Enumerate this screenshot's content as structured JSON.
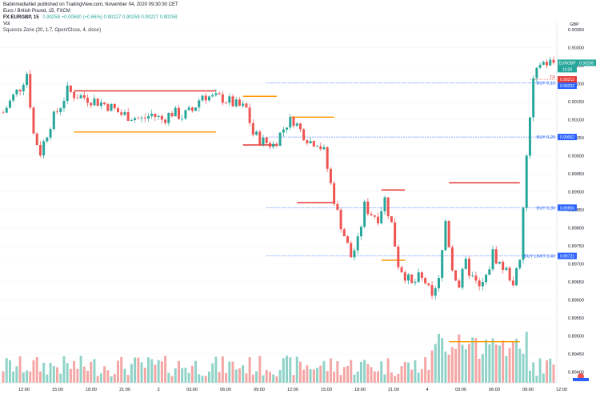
{
  "header": {
    "published": "BabinmediaNet published on TradingView.com, November 04, 2020 09:30:30 CET",
    "title": "Euro / British Pound, 15, FXCM",
    "symbol": "FX:EURGBP, 15",
    "ohlc": "0.90258  +0.00590 (+0.66%)  0.90227  0.90259  0.90227  0.90258",
    "vol": "Vol",
    "indicator": "Squeeze Zone (20, 1.7, Open/Close, 4, close)"
  },
  "price_axis": {
    "currency": "GBP",
    "ticks": [
      "0.90350",
      "0.90300",
      "0.90250",
      "0.90200",
      "0.90150",
      "0.90100",
      "0.90050",
      "0.90000",
      "0.89950",
      "0.89900",
      "0.89850",
      "0.89800",
      "0.89750",
      "0.89700",
      "0.89650",
      "0.89600",
      "0.89550",
      "0.89500",
      "0.89450",
      "0.89400"
    ]
  },
  "time_axis": {
    "ticks": [
      "12:00",
      "15:00",
      "18:00",
      "21:00",
      "3",
      "03:00",
      "06:00",
      "09:00",
      "12:00",
      "15:00",
      "18:00",
      "21:00",
      "4",
      "03:00",
      "06:00",
      "09:00",
      "12:00"
    ]
  },
  "price_tags": [
    {
      "text": "EURGBP 0.90258",
      "sym": "EURGBP",
      "value": 0.90258,
      "color": "#26a69a"
    },
    {
      "text": "14:30",
      "value": 0.90245,
      "color": "#26a69a"
    },
    {
      "text": "0.90212",
      "value": 0.90212,
      "color": "#e53935"
    },
    {
      "text": "0.90202",
      "value": 0.90202,
      "color": "#2962ff"
    },
    {
      "text": "0.90052",
      "value": 0.90052,
      "color": "#2962ff"
    },
    {
      "text": "0.89856",
      "value": 0.89856,
      "color": "#2962ff"
    },
    {
      "text": "0.89722",
      "value": 0.89722,
      "color": "#2962ff"
    }
  ],
  "annotations": [
    {
      "text": "TP",
      "value": 0.90218,
      "color": "#e53935"
    },
    {
      "text": "BUY 0,10",
      "value": 0.90202,
      "color": "#2962ff"
    },
    {
      "text": "BUY 0,20",
      "value": 0.90052,
      "color": "#2962ff"
    },
    {
      "text": "BUY 0,30",
      "value": 0.89856,
      "color": "#2962ff"
    },
    {
      "text": "BUY LIMIT 0,40",
      "value": 0.89722,
      "color": "#2962ff"
    }
  ],
  "chart_data": {
    "type": "candlestick",
    "title": "Euro / British Pound, 15, FXCM",
    "y_range": [
      0.8937,
      0.9037
    ],
    "x_range": [
      0,
      163
    ],
    "colors": {
      "up": "#26a69a",
      "down": "#ef5350",
      "vol_up": "#8fd3c8",
      "vol_down": "#f4a6a4",
      "resistance": "#e53935",
      "support": "#ff9800",
      "order": "#2962ff"
    },
    "series": [
      {
        "name": "support/resistance",
        "kind": "levels"
      }
    ],
    "levels": [
      {
        "type": "resistance",
        "x": [
          21,
          63
        ],
        "y": 0.9018
      },
      {
        "type": "support",
        "x": [
          21,
          63
        ],
        "y": 0.90066
      },
      {
        "type": "support",
        "x": [
          71,
          81
        ],
        "y": 0.90165
      },
      {
        "type": "resistance",
        "x": [
          71,
          81
        ],
        "y": 0.9003
      },
      {
        "type": "support",
        "x": [
          85,
          98
        ],
        "y": 0.90107
      },
      {
        "type": "resistance",
        "x": [
          87,
          98
        ],
        "y": 0.8987
      },
      {
        "type": "resistance",
        "x": [
          112,
          119
        ],
        "y": 0.89905
      },
      {
        "type": "support",
        "x": [
          112,
          119
        ],
        "y": 0.8971
      },
      {
        "type": "resistance",
        "x": [
          132,
          153
        ],
        "y": 0.89925
      },
      {
        "type": "support",
        "x": [
          132,
          153
        ],
        "y": 0.89484
      }
    ],
    "order_lines": [
      0.90202,
      0.90052,
      0.89856,
      0.89722
    ],
    "tp_line": 0.90212,
    "anchors": [
      [
        0,
        0.9012
      ],
      [
        3,
        0.90165
      ],
      [
        5,
        0.9019
      ],
      [
        7,
        0.9023
      ],
      [
        9,
        0.9006
      ],
      [
        11,
        0.9001
      ],
      [
        14,
        0.9009
      ],
      [
        17,
        0.9014
      ],
      [
        19,
        0.9018
      ],
      [
        21,
        0.9017
      ],
      [
        25,
        0.9016
      ],
      [
        28,
        0.9015
      ],
      [
        31,
        0.9014
      ],
      [
        35,
        0.90115
      ],
      [
        38,
        0.9011
      ],
      [
        41,
        0.901
      ],
      [
        44,
        0.90115
      ],
      [
        47,
        0.901
      ],
      [
        50,
        0.9012
      ],
      [
        53,
        0.9011
      ],
      [
        56,
        0.90125
      ],
      [
        59,
        0.9017
      ],
      [
        62,
        0.9016
      ],
      [
        65,
        0.9016
      ],
      [
        69,
        0.9014
      ],
      [
        72,
        0.9013
      ],
      [
        74,
        0.9006
      ],
      [
        77,
        0.9004
      ],
      [
        80,
        0.9003
      ],
      [
        82,
        0.9006
      ],
      [
        84,
        0.9009
      ],
      [
        86,
        0.901
      ],
      [
        88,
        0.9007
      ],
      [
        91,
        0.9004
      ],
      [
        93,
        0.9004
      ],
      [
        95,
        0.9001
      ],
      [
        97,
        0.8992
      ],
      [
        99,
        0.8984
      ],
      [
        101,
        0.8978
      ],
      [
        103,
        0.8972
      ],
      [
        105,
        0.8976
      ],
      [
        107,
        0.8986
      ],
      [
        109,
        0.8984
      ],
      [
        111,
        0.8983
      ],
      [
        113,
        0.8988
      ],
      [
        115,
        0.8981
      ],
      [
        117,
        0.897
      ],
      [
        119,
        0.8967
      ],
      [
        121,
        0.8964
      ],
      [
        123,
        0.8966
      ],
      [
        125,
        0.8965
      ],
      [
        127,
        0.896
      ],
      [
        129,
        0.8965
      ],
      [
        131,
        0.8982
      ],
      [
        133,
        0.8969
      ],
      [
        135,
        0.8964
      ],
      [
        137,
        0.897
      ],
      [
        139,
        0.8966
      ],
      [
        141,
        0.8963
      ],
      [
        143,
        0.8966
      ],
      [
        145,
        0.8973
      ],
      [
        147,
        0.897
      ],
      [
        149,
        0.8968
      ],
      [
        151,
        0.8965
      ],
      [
        153,
        0.897
      ],
      [
        155,
        0.9
      ],
      [
        157,
        0.902
      ],
      [
        159,
        0.90258
      ]
    ]
  }
}
